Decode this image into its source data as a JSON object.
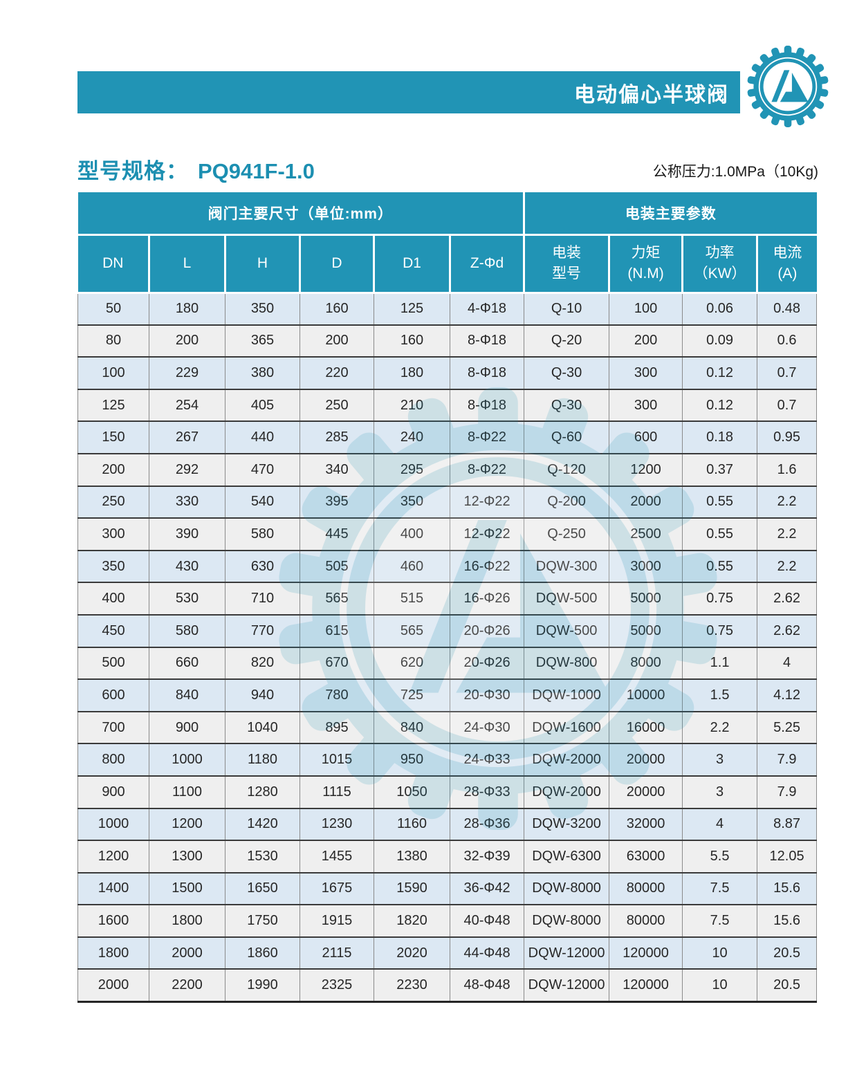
{
  "colors": {
    "accent_teal": "#2194B5",
    "heading_teal": "#1C8FB1",
    "row_blue": "#DCE8F3",
    "row_gray": "#EFEFEF"
  },
  "banner": {
    "title": "电动偏心半球阀"
  },
  "logo": {
    "name": "gear-company-logo"
  },
  "heading": {
    "label": "型号规格：",
    "model": "PQ941F-1.0",
    "pressure_note": "公称压力:1.0MPa（10Kg)"
  },
  "table": {
    "group_headers": [
      {
        "label": "阀门主要尺寸（单位:mm）",
        "colspan": 6
      },
      {
        "label": "电装主要参数",
        "colspan": 4
      }
    ],
    "columns": [
      "DN",
      "L",
      "H",
      "D",
      "D1",
      "Z-Φd",
      "电装\n型号",
      "力矩\n(N.M)",
      "功率\n（KW）",
      "电流\n(A)"
    ],
    "rows": [
      [
        "50",
        "180",
        "350",
        "160",
        "125",
        "4-Φ18",
        "Q-10",
        "100",
        "0.06",
        "0.48"
      ],
      [
        "80",
        "200",
        "365",
        "200",
        "160",
        "8-Φ18",
        "Q-20",
        "200",
        "0.09",
        "0.6"
      ],
      [
        "100",
        "229",
        "380",
        "220",
        "180",
        "8-Φ18",
        "Q-30",
        "300",
        "0.12",
        "0.7"
      ],
      [
        "125",
        "254",
        "405",
        "250",
        "210",
        "8-Φ18",
        "Q-30",
        "300",
        "0.12",
        "0.7"
      ],
      [
        "150",
        "267",
        "440",
        "285",
        "240",
        "8-Φ22",
        "Q-60",
        "600",
        "0.18",
        "0.95"
      ],
      [
        "200",
        "292",
        "470",
        "340",
        "295",
        "8-Φ22",
        "Q-120",
        "1200",
        "0.37",
        "1.6"
      ],
      [
        "250",
        "330",
        "540",
        "395",
        "350",
        "12-Φ22",
        "Q-200",
        "2000",
        "0.55",
        "2.2"
      ],
      [
        "300",
        "390",
        "580",
        "445",
        "400",
        "12-Φ22",
        "Q-250",
        "2500",
        "0.55",
        "2.2"
      ],
      [
        "350",
        "430",
        "630",
        "505",
        "460",
        "16-Φ22",
        "DQW-300",
        "3000",
        "0.55",
        "2.2"
      ],
      [
        "400",
        "530",
        "710",
        "565",
        "515",
        "16-Φ26",
        "DQW-500",
        "5000",
        "0.75",
        "2.62"
      ],
      [
        "450",
        "580",
        "770",
        "615",
        "565",
        "20-Φ26",
        "DQW-500",
        "5000",
        "0.75",
        "2.62"
      ],
      [
        "500",
        "660",
        "820",
        "670",
        "620",
        "20-Φ26",
        "DQW-800",
        "8000",
        "1.1",
        "4"
      ],
      [
        "600",
        "840",
        "940",
        "780",
        "725",
        "20-Φ30",
        "DQW-1000",
        "10000",
        "1.5",
        "4.12"
      ],
      [
        "700",
        "900",
        "1040",
        "895",
        "840",
        "24-Φ30",
        "DQW-1600",
        "16000",
        "2.2",
        "5.25"
      ],
      [
        "800",
        "1000",
        "1180",
        "1015",
        "950",
        "24-Φ33",
        "DQW-2000",
        "20000",
        "3",
        "7.9"
      ],
      [
        "900",
        "1100",
        "1280",
        "1115",
        "1050",
        "28-Φ33",
        "DQW-2000",
        "20000",
        "3",
        "7.9"
      ],
      [
        "1000",
        "1200",
        "1420",
        "1230",
        "1160",
        "28-Φ36",
        "DQW-3200",
        "32000",
        "4",
        "8.87"
      ],
      [
        "1200",
        "1300",
        "1530",
        "1455",
        "1380",
        "32-Φ39",
        "DQW-6300",
        "63000",
        "5.5",
        "12.05"
      ],
      [
        "1400",
        "1500",
        "1650",
        "1675",
        "1590",
        "36-Φ42",
        "DQW-8000",
        "80000",
        "7.5",
        "15.6"
      ],
      [
        "1600",
        "1800",
        "1750",
        "1915",
        "1820",
        "40-Φ48",
        "DQW-8000",
        "80000",
        "7.5",
        "15.6"
      ],
      [
        "1800",
        "2000",
        "1860",
        "2115",
        "2020",
        "44-Φ48",
        "DQW-12000",
        "120000",
        "10",
        "20.5"
      ],
      [
        "2000",
        "2200",
        "1990",
        "2325",
        "2230",
        "48-Φ48",
        "DQW-12000",
        "120000",
        "10",
        "20.5"
      ]
    ]
  }
}
